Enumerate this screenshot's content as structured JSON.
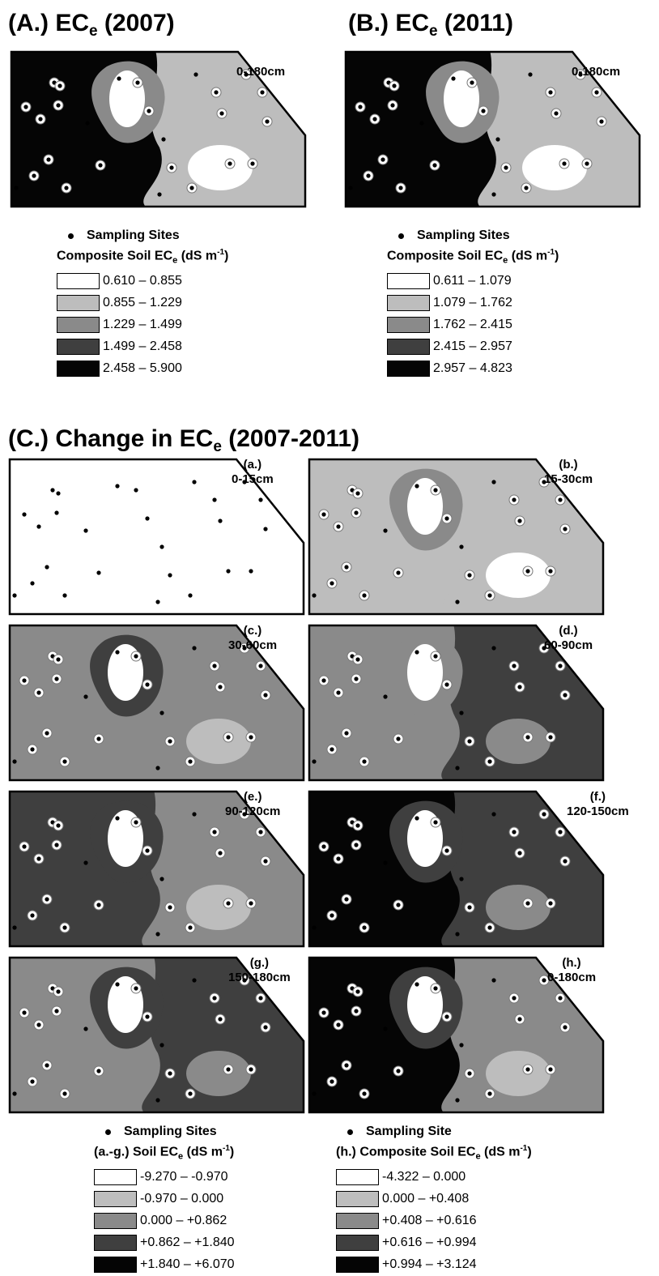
{
  "titles": {
    "a": {
      "main": "(A.) EC",
      "sub": "e",
      "tail": " (2007)"
    },
    "b": {
      "main": "(B.) EC",
      "sub": "e",
      "tail": " (2011)"
    },
    "c": {
      "main": "(C.) Change in EC",
      "sub": "e",
      "tail": " (2007-2011)"
    }
  },
  "colors": {
    "c1": "#ffffff",
    "c2": "#bdbdbd",
    "c3": "#8a8a8a",
    "c4": "#3f3f3f",
    "c5": "#050505"
  },
  "maps": [
    {
      "id": "A",
      "label_line1": "",
      "label_line2": "0-180cm",
      "base": 2,
      "west": 5,
      "mid": 3
    },
    {
      "id": "B",
      "label_line1": "",
      "label_line2": "0-180cm",
      "base": 2,
      "west": 5,
      "mid": 3
    },
    {
      "id": "a",
      "label_line1": "(a.)",
      "label_line2": "0-15cm",
      "base": 1,
      "west": 1,
      "mid": 1
    },
    {
      "id": "b",
      "label_line1": "(b.)",
      "label_line2": "15-30cm",
      "base": 2,
      "west": 2,
      "mid": 3
    },
    {
      "id": "c",
      "label_line1": "(c.)",
      "label_line2": "30-60cm",
      "base": 3,
      "west": 3,
      "mid": 4
    },
    {
      "id": "d",
      "label_line1": "(d.)",
      "label_line2": "60-90cm",
      "base": 4,
      "west": 3,
      "mid": 3
    },
    {
      "id": "e",
      "label_line1": "(e.)",
      "label_line2": "90-120cm",
      "base": 3,
      "west": 4,
      "mid": 4
    },
    {
      "id": "f",
      "label_line1": "(f.)",
      "label_line2": "120-150cm",
      "base": 4,
      "west": 5,
      "mid": 4
    },
    {
      "id": "g",
      "label_line1": "(g.)",
      "label_line2": "150-180cm",
      "base": 4,
      "west": 3,
      "mid": 4
    },
    {
      "id": "h",
      "label_line1": "(h.)",
      "label_line2": "0-180cm",
      "base": 3,
      "west": 5,
      "mid": 4
    }
  ],
  "legends": {
    "A": {
      "site_label": "Sampling Sites",
      "title": "Composite Soil EC",
      "title_sub": "e",
      "unit": " (dS m",
      "unit_sup": "-1",
      "unit_close": ")",
      "ranges": [
        "0.610 – 0.855",
        "0.855 – 1.229",
        "1.229 – 1.499",
        "1.499 – 2.458",
        "2.458 – 5.900"
      ]
    },
    "B": {
      "site_label": "Sampling Sites",
      "title": "Composite Soil EC",
      "title_sub": "e",
      "unit": " (dS m",
      "unit_sup": "-1",
      "unit_close": ")",
      "ranges": [
        "0.611 – 1.079",
        "1.079 – 1.762",
        "1.762 – 2.415",
        "2.415 – 2.957",
        "2.957 – 4.823"
      ]
    },
    "C1": {
      "site_label": "Sampling Sites",
      "title": "(a.-g.) Soil EC",
      "title_sub": "e",
      "unit": " (dS m",
      "unit_sup": "-1",
      "unit_close": ")",
      "ranges": [
        "-9.270 – -0.970",
        "-0.970 – 0.000",
        "0.000 – +0.862",
        "+0.862 – +1.840",
        "+1.840 – +6.070"
      ]
    },
    "C2": {
      "site_label": "Sampling Site",
      "title": "(h.) Composite Soil EC",
      "title_sub": "e",
      "unit": " (dS m",
      "unit_sup": "-1",
      "unit_close": ")",
      "ranges": [
        "-4.322 – 0.000",
        "0.000 – +0.408",
        "+0.408 – +0.616",
        "+0.616 – +0.994",
        "+0.994 – +3.124"
      ]
    }
  }
}
